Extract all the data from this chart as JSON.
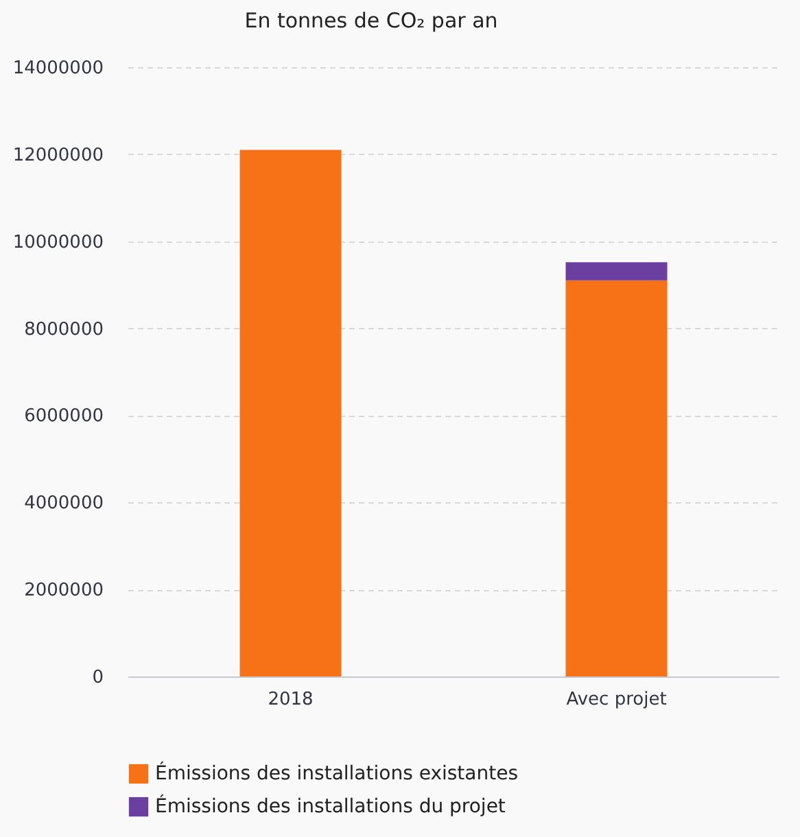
{
  "chart_data": {
    "type": "bar",
    "subtitle": "En tonnes de CO₂ par an",
    "categories": [
      "2018",
      "Avec projet"
    ],
    "stacked": true,
    "series": [
      {
        "name": "Émissions des installations existantes",
        "color": "#f77216",
        "values": [
          12100000,
          9100000
        ]
      },
      {
        "name": "Émissions des installations du projet",
        "color": "#6b3fa0",
        "values": [
          0,
          420000
        ]
      }
    ],
    "ylim": [
      0,
      14000000
    ],
    "yticks": [
      0,
      2000000,
      4000000,
      6000000,
      8000000,
      10000000,
      12000000,
      14000000
    ],
    "grid": "y",
    "legend": "bottom"
  }
}
